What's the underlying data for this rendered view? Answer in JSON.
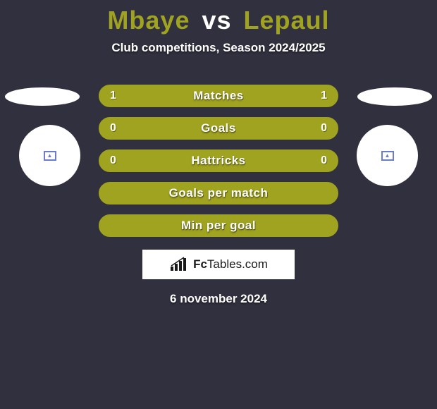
{
  "colors": {
    "background": "#30303e",
    "title_left": "#a0a320",
    "title_right": "#a0a320",
    "row_bg": "#a0a320",
    "row_border": "#a0a320",
    "text_white": "#ffffff",
    "brand_text": "#1a1a1a",
    "placeholder_left": "#6a7bd0",
    "placeholder_right": "#6a7bd0"
  },
  "title": {
    "left_name": "Mbaye",
    "vs": "vs",
    "right_name": "Lepaul"
  },
  "subtitle": "Club competitions, Season 2024/2025",
  "rows": [
    {
      "label": "Matches",
      "left": "1",
      "right": "1",
      "show_values": true
    },
    {
      "label": "Goals",
      "left": "0",
      "right": "0",
      "show_values": true
    },
    {
      "label": "Hattricks",
      "left": "0",
      "right": "0",
      "show_values": true
    },
    {
      "label": "Goals per match",
      "left": "",
      "right": "",
      "show_values": false
    },
    {
      "label": "Min per goal",
      "left": "",
      "right": "",
      "show_values": false
    }
  ],
  "row_style": {
    "height": 32,
    "radius": 16,
    "border_width": 2,
    "label_fontsize": 17,
    "value_fontsize": 16
  },
  "brand": {
    "name_bold": "Fc",
    "name_rest": "Tables.com"
  },
  "footer_date": "6 november 2024"
}
